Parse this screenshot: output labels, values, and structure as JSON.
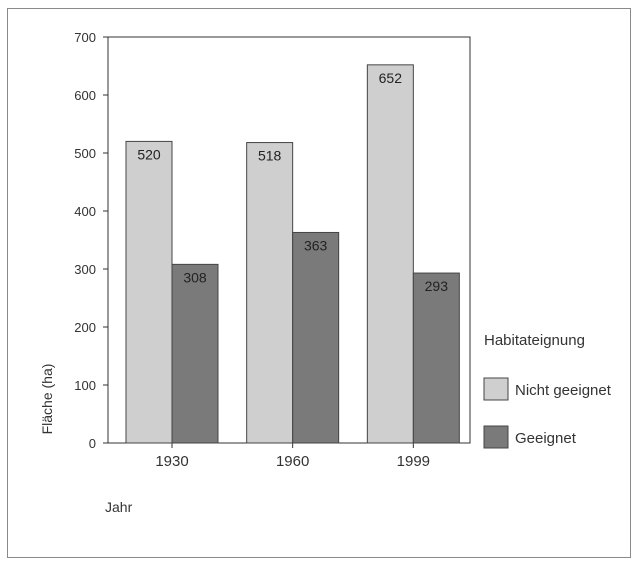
{
  "chart_data": {
    "type": "bar",
    "categories": [
      "1930",
      "1960",
      "1999"
    ],
    "series": [
      {
        "name": "Nicht geeignet",
        "values": [
          520,
          518,
          652
        ],
        "color": "#cfcfcf"
      },
      {
        "name": "Geeignet",
        "values": [
          308,
          363,
          293
        ],
        "color": "#7a7a7a"
      }
    ],
    "xlabel": "Jahr",
    "ylabel": "Fläche (ha)",
    "ylim": [
      0,
      700
    ],
    "yticks": [
      0,
      100,
      200,
      300,
      400,
      500,
      600,
      700
    ],
    "legend_title": "Habitateignung",
    "legend_position": "right",
    "grid": false,
    "data_labels": true
  }
}
